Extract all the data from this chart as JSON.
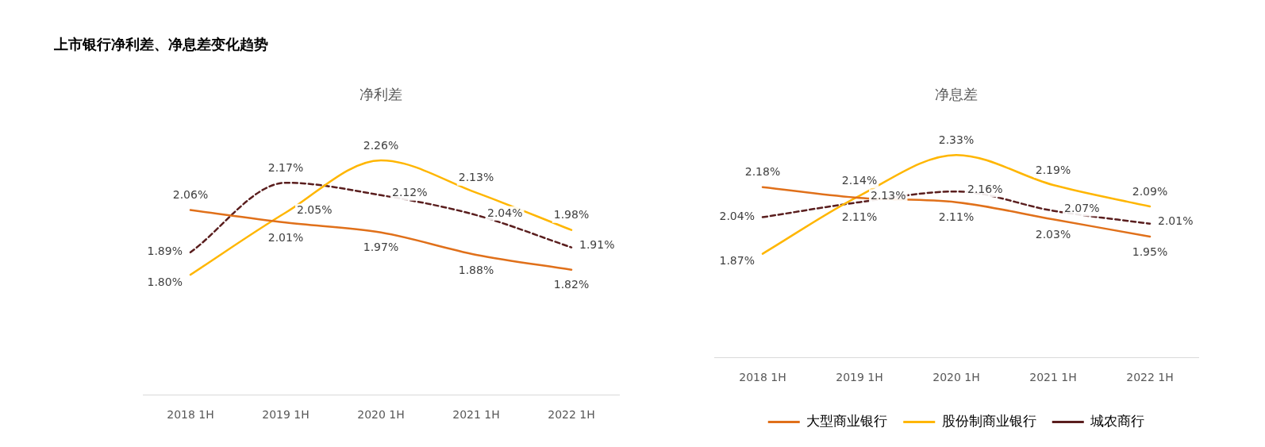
{
  "chart_data": [
    {
      "type": "line",
      "title": "净利差",
      "annotations": [
        "上市银行净利差、净息差变化趋势"
      ],
      "categories": [
        "2018 1H",
        "2019 1H",
        "2020 1H",
        "2021 1H",
        "2022 1H"
      ],
      "legend": false,
      "grid": false,
      "marker": "none",
      "tick_labels": "x",
      "series": [
        {
          "color": "#e0701a",
          "line_style": "solid",
          "values": [
            2.06,
            2.01,
            1.97,
            1.88,
            1.82
          ],
          "value_labels": [
            "2.06%",
            "2.01%",
            "1.97%",
            "1.88%",
            "1.82%"
          ]
        },
        {
          "color": "#ffb600",
          "line_style": "solid",
          "values": [
            1.8,
            2.05,
            2.26,
            2.13,
            1.98
          ],
          "value_labels": [
            "1.80%",
            "2.05%",
            "2.26%",
            "2.13%",
            "1.98%"
          ]
        },
        {
          "color": "#5a1e1e",
          "line_style": "dashed",
          "values": [
            1.89,
            2.17,
            2.12,
            2.04,
            1.91
          ],
          "value_labels": [
            "1.89%",
            "2.17%",
            "2.12%",
            "2.04%",
            "1.91%"
          ]
        }
      ]
    },
    {
      "type": "line",
      "title": "净息差",
      "categories": [
        "2018 1H",
        "2019 1H",
        "2020 1H",
        "2021 1H",
        "2022 1H"
      ],
      "legend": "bottom",
      "grid": false,
      "marker": "none",
      "tick_labels": "x",
      "series": [
        {
          "name": "大型商业银行",
          "color": "#e0701a",
          "line_style": "solid",
          "values": [
            2.18,
            2.13,
            2.11,
            2.03,
            1.95
          ],
          "value_labels": [
            "2.18%",
            "2.13%",
            "2.11%",
            "2.03%",
            "1.95%"
          ]
        },
        {
          "name": "股份制商业银行",
          "color": "#ffb600",
          "line_style": "solid",
          "values": [
            1.87,
            2.14,
            2.33,
            2.19,
            2.09
          ],
          "value_labels": [
            "1.87%",
            "2.14%",
            "2.33%",
            "2.19%",
            "2.09%"
          ]
        },
        {
          "name": "城农商行",
          "color": "#5a1e1e",
          "line_style": "dashed",
          "values": [
            2.04,
            2.11,
            2.16,
            2.07,
            2.01
          ],
          "value_labels": [
            "2.04%",
            "2.11%",
            "2.16%",
            "2.07%",
            "2.01%"
          ]
        }
      ]
    }
  ]
}
